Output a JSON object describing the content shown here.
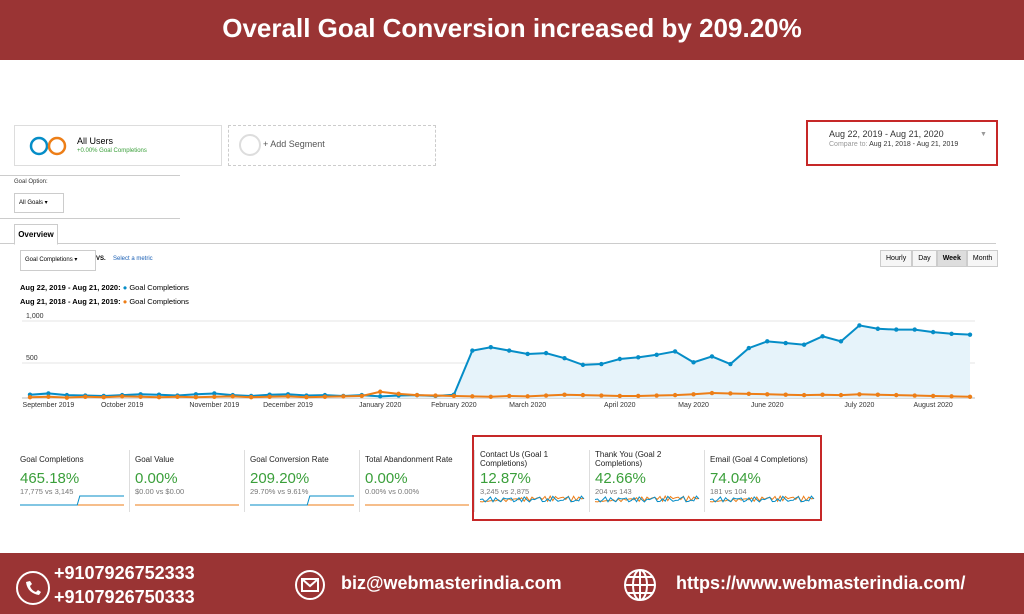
{
  "header": {
    "title": "Overall Goal Conversion increased by 209.20%"
  },
  "segments": {
    "all_users": "All Users",
    "all_users_sub": "+0.00% Goal Completions",
    "add": "+ Add Segment"
  },
  "date_range": {
    "main": "Aug 22, 2019 - Aug 21, 2020",
    "compare_label": "Compare to:",
    "compare": "Aug 21, 2018 - Aug 21, 2019"
  },
  "goal_option": {
    "label": "Goal Option:",
    "value": "All Goals"
  },
  "tab": "Overview",
  "controls": {
    "metric": "Goal Completions",
    "vs": "VS.",
    "select": "Select a metric",
    "buttons": [
      "Hourly",
      "Day",
      "Week",
      "Month"
    ]
  },
  "chart_data": {
    "type": "line",
    "categories": [
      null,
      "September 2019",
      null,
      null,
      null,
      "October 2019",
      null,
      null,
      null,
      null,
      "November 2019",
      null,
      null,
      null,
      "December 2019",
      null,
      null,
      null,
      null,
      "January 2020",
      null,
      null,
      null,
      "February 2020",
      null,
      null,
      null,
      "March 2020",
      null,
      null,
      null,
      null,
      "April 2020",
      null,
      null,
      null,
      "May 2020",
      null,
      null,
      null,
      "June 2020",
      null,
      null,
      null,
      null,
      "July 2020",
      null,
      null,
      null,
      "August 2020",
      null,
      null
    ],
    "series": [
      {
        "name": "Goal Completions",
        "period": "Aug 22, 2019 - Aug 21, 2020:",
        "color": "#058dc7",
        "values": [
          75,
          90,
          70,
          65,
          60,
          70,
          80,
          75,
          65,
          80,
          90,
          70,
          60,
          75,
          80,
          65,
          70,
          60,
          70,
          55,
          65,
          70,
          60,
          75,
          600,
          640,
          600,
          560,
          570,
          510,
          430,
          440,
          500,
          520,
          550,
          590,
          460,
          530,
          440,
          630,
          710,
          690,
          670,
          770,
          710,
          900,
          860,
          850,
          850,
          820,
          800,
          790
        ]
      },
      {
        "name": "Goal Completions",
        "period": "Aug 21, 2018 - Aug 21, 2019:",
        "color": "#ed7e17",
        "values": [
          45,
          50,
          40,
          50,
          45,
          55,
          50,
          45,
          50,
          45,
          50,
          55,
          45,
          50,
          55,
          45,
          50,
          55,
          60,
          110,
          85,
          70,
          65,
          60,
          55,
          50,
          60,
          55,
          65,
          75,
          70,
          65,
          60,
          60,
          65,
          70,
          80,
          95,
          90,
          85,
          80,
          75,
          70,
          75,
          70,
          80,
          75,
          70,
          65,
          60,
          55,
          50
        ]
      }
    ],
    "ylim": [
      0,
      1000
    ],
    "yticks": [
      500,
      {
        "value": 1000,
        "label": "1,000"
      }
    ],
    "grid": true
  },
  "metrics": [
    {
      "title": "Goal Completions",
      "value": "465.18%",
      "compare": "17,775 vs 3,145"
    },
    {
      "title": "Goal Value",
      "value": "0.00%",
      "compare": "$0.00 vs $0.00"
    },
    {
      "title": "Goal Conversion Rate",
      "value": "209.20%",
      "compare": "29.70% vs 9.61%"
    },
    {
      "title": "Total Abandonment Rate",
      "value": "0.00%",
      "compare": "0.00% vs 0.00%"
    },
    {
      "title": "Contact Us (Goal 1 Completions)",
      "value": "12.87%",
      "compare": "3,245 vs 2,875"
    },
    {
      "title": "Thank You (Goal 2 Completions)",
      "value": "42.66%",
      "compare": "204 vs 143"
    },
    {
      "title": "Email (Goal 4 Completions)",
      "value": "74.04%",
      "compare": "181 vs 104"
    }
  ],
  "footer": {
    "phones": [
      "+9107926752333",
      "+9107926750333"
    ],
    "email": "biz@webmasterindia.com",
    "website": "https://www.webmasterindia.com/"
  }
}
